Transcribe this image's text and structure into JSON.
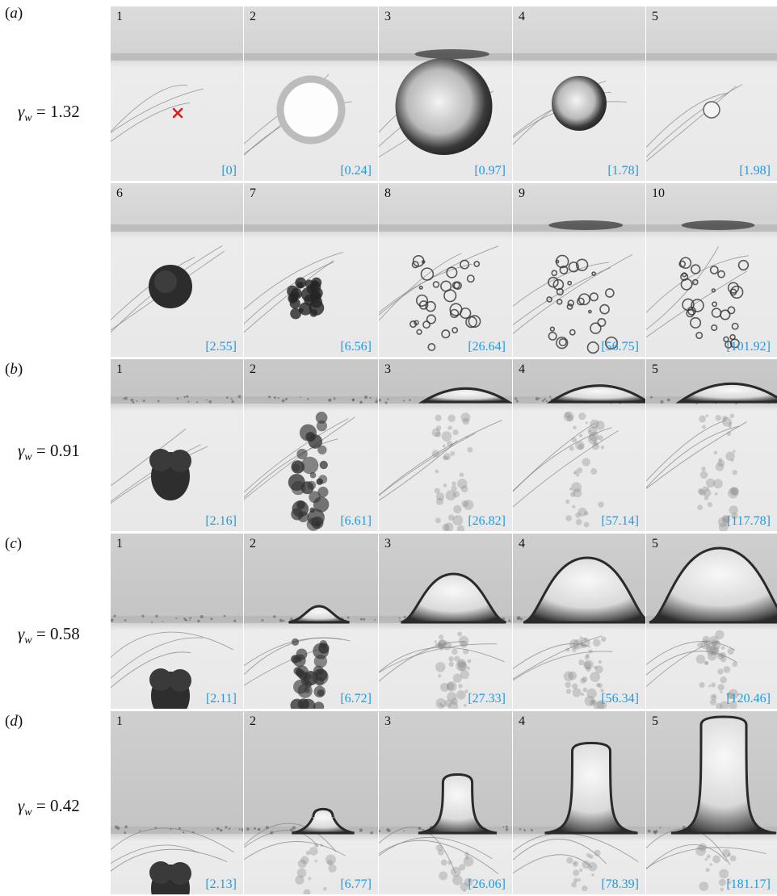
{
  "panels": [
    {
      "label": "a",
      "gamma_value": "1.32",
      "rows": [
        {
          "frames": [
            {
              "num": "1",
              "time": "[0]",
              "shape": "none",
              "marker": "cross"
            },
            {
              "num": "2",
              "time": "[0.24]",
              "shape": "ring"
            },
            {
              "num": "3",
              "time": "[0.97]",
              "shape": "bigbubble",
              "topdrop": true
            },
            {
              "num": "4",
              "time": "[1.78]",
              "shape": "darkbubble"
            },
            {
              "num": "5",
              "time": "[1.98]",
              "shape": "smallring"
            }
          ]
        },
        {
          "frames": [
            {
              "num": "6",
              "time": "[2.55]",
              "shape": "darkball"
            },
            {
              "num": "7",
              "time": "[6.56]",
              "shape": "cloud"
            },
            {
              "num": "8",
              "time": "[26.64]",
              "shape": "bubbles"
            },
            {
              "num": "9",
              "time": "[56.75]",
              "shape": "bubbles",
              "topdrop": true
            },
            {
              "num": "10",
              "time": "[101.92]",
              "shape": "bubbles",
              "topdrop": true
            }
          ]
        }
      ]
    },
    {
      "label": "b",
      "gamma_value": "0.91",
      "rows": [
        {
          "frames": [
            {
              "num": "1",
              "time": "[2.16]",
              "shape": "blob"
            },
            {
              "num": "2",
              "time": "[6.61]",
              "shape": "column"
            },
            {
              "num": "3",
              "time": "[26.82]",
              "shape": "mist",
              "dome": 0.3
            },
            {
              "num": "4",
              "time": "[57.14]",
              "shape": "mist",
              "dome": 0.45
            },
            {
              "num": "5",
              "time": "[117.78]",
              "shape": "mist",
              "dome": 0.55
            }
          ]
        }
      ]
    },
    {
      "label": "c",
      "gamma_value": "0.58",
      "rows": [
        {
          "frames": [
            {
              "num": "1",
              "time": "[2.11]",
              "shape": "blob"
            },
            {
              "num": "2",
              "time": "[6.72]",
              "shape": "column",
              "dome": 0.1
            },
            {
              "num": "3",
              "time": "[27.33]",
              "shape": "mist",
              "dome": 0.6
            },
            {
              "num": "4",
              "time": "[56.34]",
              "shape": "mist",
              "dome": 0.85
            },
            {
              "num": "5",
              "time": "[120.46]",
              "shape": "mist",
              "dome": 1.0
            }
          ]
        }
      ]
    },
    {
      "label": "d",
      "gamma_value": "0.42",
      "rows": [
        {
          "frames": [
            {
              "num": "1",
              "time": "[2.13]",
              "shape": "blob"
            },
            {
              "num": "2",
              "time": "[6.77]",
              "shape": "faint",
              "jet": 0.12
            },
            {
              "num": "3",
              "time": "[26.06]",
              "shape": "faint",
              "jet": 0.45
            },
            {
              "num": "4",
              "time": "[78.39]",
              "shape": "faint",
              "jet": 0.75
            },
            {
              "num": "5",
              "time": "[181.17]",
              "shape": "faint",
              "jet": 1.0
            }
          ]
        }
      ]
    }
  ]
}
